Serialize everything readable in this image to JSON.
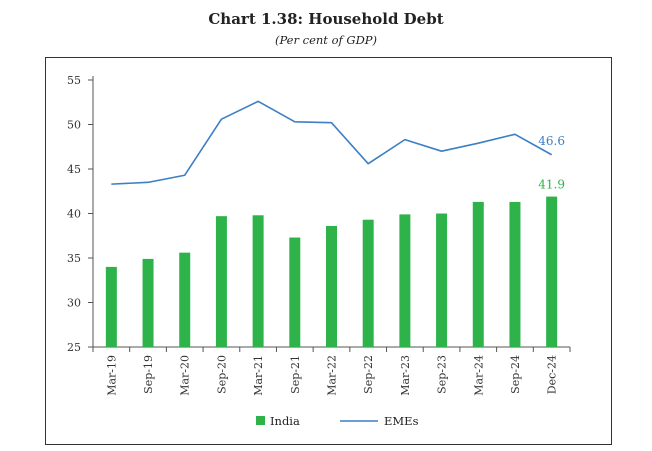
{
  "chart_data": {
    "type": "bar",
    "title": "Chart 1.38: Household Debt",
    "subtitle": "(Per cent of GDP)",
    "categories": [
      "Mar-19",
      "Sep-19",
      "Mar-20",
      "Sep-20",
      "Mar-21",
      "Sep-21",
      "Mar-22",
      "Sep-22",
      "Mar-23",
      "Sep-23",
      "Mar-24",
      "Sep-24",
      "Dec-24"
    ],
    "ylim": [
      25,
      55
    ],
    "yticks": [
      25,
      30,
      35,
      40,
      45,
      50,
      55
    ],
    "grid": false,
    "legend_position": "bottom",
    "series": [
      {
        "name": "India",
        "type": "bar",
        "color": "#2db34a",
        "values": [
          34.0,
          34.9,
          35.6,
          39.7,
          39.8,
          37.3,
          38.6,
          39.3,
          39.9,
          40.0,
          41.3,
          41.3,
          41.9
        ],
        "end_label": "41.9"
      },
      {
        "name": "EMEs",
        "type": "line",
        "color": "#3b7fc4",
        "values": [
          43.3,
          43.5,
          44.3,
          50.6,
          52.6,
          50.3,
          50.2,
          45.6,
          48.3,
          47.0,
          47.9,
          48.9,
          46.6
        ],
        "end_label": "46.6"
      }
    ]
  }
}
